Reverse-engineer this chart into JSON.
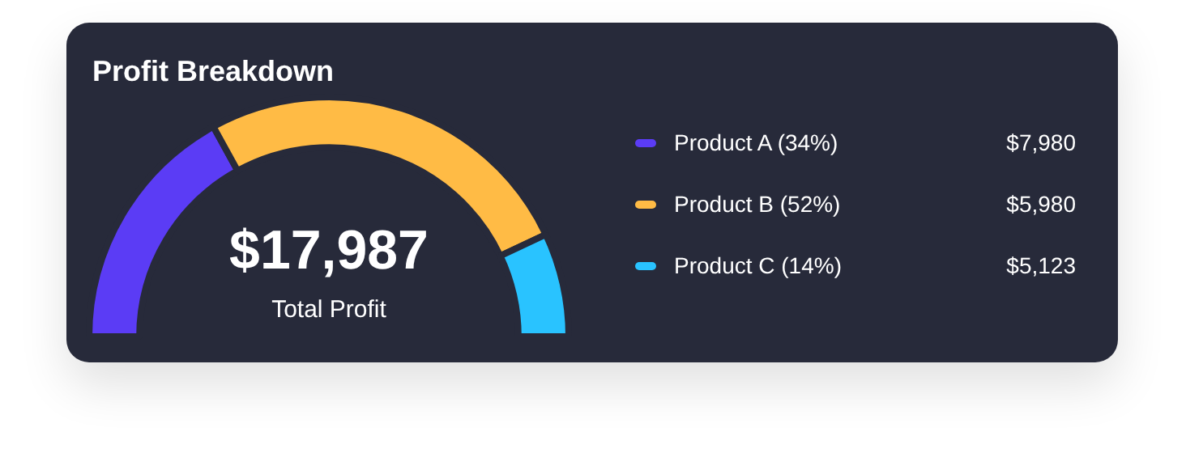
{
  "chart_data": {
    "type": "donut",
    "title": "Profit Breakdown",
    "categories": [
      "Product A  (34%)",
      "Product B (52%)",
      "Product C (14%)"
    ],
    "values": [
      34,
      52,
      14
    ],
    "colors": [
      "#5b3cf5",
      "#ffbb45",
      "#29c3ff"
    ],
    "annotations": [
      "$17,987",
      "Total Profit",
      "$7,980",
      "$5,980",
      "$5,123"
    ],
    "legend": "right"
  }
}
